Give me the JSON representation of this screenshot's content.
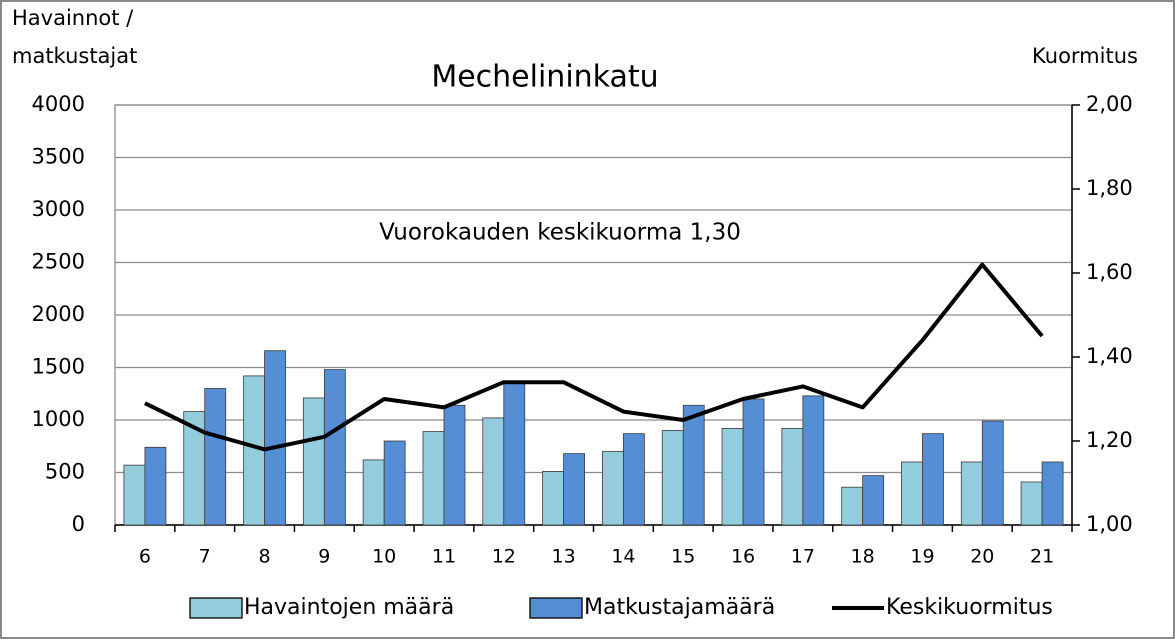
{
  "chart_data": {
    "type": "bar",
    "title": "Mechelininkatu",
    "y_label": [
      "Havainnot /",
      "matkustajat"
    ],
    "y2_label": "Kuormitus",
    "annotation": "Vuorokauden keskikuorma 1,30",
    "categories": [
      "6",
      "7",
      "8",
      "9",
      "10",
      "11",
      "12",
      "13",
      "14",
      "15",
      "16",
      "17",
      "18",
      "19",
      "20",
      "21"
    ],
    "series": [
      {
        "name": "Havaintojen määrä",
        "type": "bar",
        "color": "#93cddd",
        "values": [
          570,
          1080,
          1420,
          1210,
          620,
          890,
          1020,
          510,
          700,
          900,
          920,
          920,
          360,
          600,
          600,
          410
        ]
      },
      {
        "name": "Matkustajamäärä",
        "type": "bar",
        "color": "#558ed5",
        "values": [
          740,
          1300,
          1660,
          1480,
          800,
          1140,
          1360,
          680,
          870,
          1140,
          1200,
          1230,
          470,
          870,
          990,
          600
        ]
      },
      {
        "name": "Keskikuormitus",
        "type": "line",
        "axis": "y2",
        "color": "#000000",
        "values": [
          1.29,
          1.22,
          1.18,
          1.21,
          1.3,
          1.28,
          1.34,
          1.34,
          1.27,
          1.25,
          1.3,
          1.33,
          1.28,
          1.44,
          1.62,
          1.45
        ]
      }
    ],
    "ylim": [
      0,
      4000
    ],
    "yticks": [
      0,
      500,
      1000,
      1500,
      2000,
      2500,
      3000,
      3500,
      4000
    ],
    "y2lim": [
      1,
      2
    ],
    "y2ticks": [
      {
        "value": 1,
        "label": "1,00"
      },
      {
        "value": 1.2,
        "label": "1,20"
      },
      {
        "value": 1.4,
        "label": "1,40"
      },
      {
        "value": 1.6,
        "label": "1,60"
      },
      {
        "value": 1.8,
        "label": "1,80"
      },
      {
        "value": 2,
        "label": "2,00"
      }
    ],
    "grid": true,
    "legend": "bottom"
  }
}
